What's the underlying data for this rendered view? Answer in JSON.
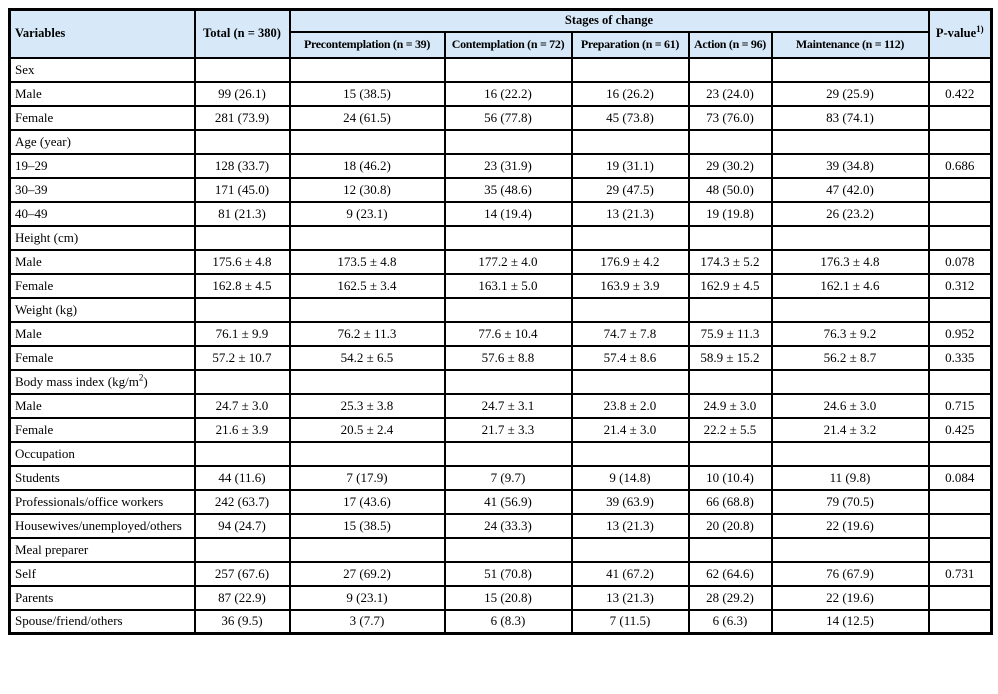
{
  "style": {
    "header_bg": "#d7e9f8",
    "border_color": "#000000",
    "text_color": "#000000"
  },
  "table": {
    "header": {
      "variables": "Variables",
      "total": "Total (n = 380)",
      "stages_title": "Stages of change",
      "stage_columns": [
        "Precontemplation (n = 39)",
        "Contemplation (n = 72)",
        "Preparation  (n = 61)",
        "Action (n = 96)",
        "Maintenance (n = 112)"
      ],
      "pvalue": "P-value^{1)}"
    },
    "rows": [
      {
        "type": "category",
        "label": "Sex"
      },
      {
        "type": "data",
        "label": "Male",
        "cells": [
          "99 (26.1)",
          "15 (38.5)",
          "16 (22.2)",
          "16 (26.2)",
          "23 (24.0)",
          "29 (25.9)"
        ],
        "pvalue": "0.422"
      },
      {
        "type": "data",
        "label": "Female",
        "cells": [
          "281 (73.9)",
          "24 (61.5)",
          "56 (77.8)",
          "45 (73.8)",
          "73 (76.0)",
          "83 (74.1)"
        ],
        "pvalue": ""
      },
      {
        "type": "category",
        "label": "Age (year)"
      },
      {
        "type": "data",
        "label": "19–29",
        "cells": [
          "128 (33.7)",
          "18 (46.2)",
          "23 (31.9)",
          "19 (31.1)",
          "29 (30.2)",
          "39 (34.8)"
        ],
        "pvalue": "0.686"
      },
      {
        "type": "data",
        "label": "30–39",
        "cells": [
          "171 (45.0)",
          "12 (30.8)",
          "35 (48.6)",
          "29 (47.5)",
          "48 (50.0)",
          "47 (42.0)"
        ],
        "pvalue": ""
      },
      {
        "type": "data",
        "label": "40–49",
        "cells": [
          "81 (21.3)",
          "9 (23.1)",
          "14 (19.4)",
          "13 (21.3)",
          "19 (19.8)",
          "26 (23.2)"
        ],
        "pvalue": ""
      },
      {
        "type": "category",
        "label": "Height (cm)"
      },
      {
        "type": "data",
        "label": "Male",
        "cells": [
          "175.6 ± 4.8",
          "173.5 ± 4.8",
          "177.2 ± 4.0",
          "176.9 ± 4.2",
          "174.3 ± 5.2",
          "176.3 ± 4.8"
        ],
        "pvalue": "0.078"
      },
      {
        "type": "data",
        "label": "Female",
        "cells": [
          "162.8 ± 4.5",
          "162.5 ± 3.4",
          "163.1 ± 5.0",
          "163.9 ± 3.9",
          "162.9 ± 4.5",
          "162.1 ± 4.6"
        ],
        "pvalue": "0.312"
      },
      {
        "type": "category",
        "label": "Weight (kg)"
      },
      {
        "type": "data",
        "label": "Male",
        "cells": [
          "76.1 ± 9.9",
          "76.2 ± 11.3",
          "77.6 ± 10.4",
          "74.7 ± 7.8",
          "75.9 ± 11.3",
          "76.3 ± 9.2"
        ],
        "pvalue": "0.952"
      },
      {
        "type": "data",
        "label": "Female",
        "cells": [
          "57.2 ± 10.7",
          "54.2 ± 6.5",
          "57.6 ± 8.8",
          "57.4 ± 8.6",
          "58.9 ± 15.2",
          "56.2 ± 8.7"
        ],
        "pvalue": "0.335"
      },
      {
        "type": "category",
        "label": "Body mass index (kg/m^{2})"
      },
      {
        "type": "data",
        "label": "Male",
        "cells": [
          "24.7 ± 3.0",
          "25.3 ± 3.8",
          "24.7 ± 3.1",
          "23.8 ± 2.0",
          "24.9 ± 3.0",
          "24.6 ± 3.0"
        ],
        "pvalue": "0.715"
      },
      {
        "type": "data",
        "label": "Female",
        "cells": [
          "21.6 ± 3.9",
          "20.5 ± 2.4",
          "21.7 ± 3.3",
          "21.4 ± 3.0",
          "22.2 ± 5.5",
          "21.4 ± 3.2"
        ],
        "pvalue": "0.425"
      },
      {
        "type": "category",
        "label": "Occupation"
      },
      {
        "type": "data",
        "label": "Students",
        "cells": [
          "44 (11.6)",
          "7 (17.9)",
          "7 (9.7)",
          "9 (14.8)",
          "10 (10.4)",
          "11 (9.8)"
        ],
        "pvalue": "0.084"
      },
      {
        "type": "data",
        "label": "Professionals/office workers",
        "cells": [
          "242 (63.7)",
          "17 (43.6)",
          "41 (56.9)",
          "39 (63.9)",
          "66 (68.8)",
          "79 (70.5)"
        ],
        "pvalue": ""
      },
      {
        "type": "data",
        "label": "Housewives/unemployed/others",
        "cells": [
          "94 (24.7)",
          "15 (38.5)",
          "24 (33.3)",
          "13 (21.3)",
          "20 (20.8)",
          "22 (19.6)"
        ],
        "pvalue": ""
      },
      {
        "type": "category",
        "label": "Meal preparer"
      },
      {
        "type": "data",
        "label": "Self",
        "cells": [
          "257 (67.6)",
          "27 (69.2)",
          "51 (70.8)",
          "41 (67.2)",
          "62 (64.6)",
          "76 (67.9)"
        ],
        "pvalue": "0.731"
      },
      {
        "type": "data",
        "label": "Parents",
        "cells": [
          "87 (22.9)",
          "9 (23.1)",
          "15 (20.8)",
          "13 (21.3)",
          "28 (29.2)",
          "22 (19.6)"
        ],
        "pvalue": ""
      },
      {
        "type": "data",
        "label": "Spouse/friend/others",
        "cells": [
          "36 (9.5)",
          "3 (7.7)",
          "6 (8.3)",
          "7 (11.5)",
          "6 (6.3)",
          "14 (12.5)"
        ],
        "pvalue": ""
      }
    ]
  }
}
